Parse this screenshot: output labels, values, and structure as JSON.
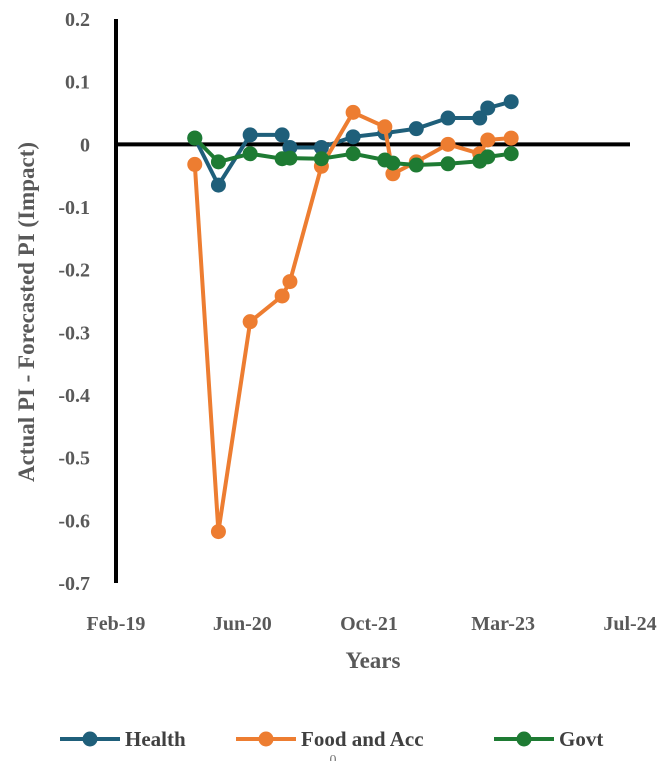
{
  "chart_data": {
    "type": "line",
    "title": "",
    "xlabel": "Years",
    "ylabel": "Actual PI - Forecasted PI (Impact)",
    "x_tick_labels": [
      "Feb-19",
      "Jun-20",
      "Oct-21",
      "Mar-23",
      "Jul-24"
    ],
    "x_tick_dates": [
      "2019-02-01",
      "2020-06-01",
      "2021-10-01",
      "2023-03-01",
      "2024-07-01"
    ],
    "xlim": [
      "2019-02-01",
      "2024-07-01"
    ],
    "ylim": [
      -0.7,
      0.2
    ],
    "y_ticks": [
      -0.7,
      -0.6,
      -0.5,
      -0.4,
      -0.3,
      -0.2,
      -0.1,
      0,
      0.1,
      0.2
    ],
    "y_tick_labels": [
      "-0.7",
      "-0.6",
      "-0.5",
      "-0.4",
      "-0.3",
      "-0.2",
      "-0.1",
      "0",
      "0.1",
      "0.2"
    ],
    "grid": false,
    "legend_position": "bottom",
    "series": [
      {
        "name": "Health",
        "color": "#1f5f7a",
        "points": [
          {
            "x": "2019-12-01",
            "y": 0.01
          },
          {
            "x": "2020-03-01",
            "y": -0.065
          },
          {
            "x": "2020-07-01",
            "y": 0.015
          },
          {
            "x": "2020-11-01",
            "y": 0.015
          },
          {
            "x": "2020-12-01",
            "y": -0.005
          },
          {
            "x": "2021-04-01",
            "y": -0.005
          },
          {
            "x": "2021-08-01",
            "y": 0.012
          },
          {
            "x": "2021-12-01",
            "y": 0.018
          },
          {
            "x": "2022-04-01",
            "y": 0.025
          },
          {
            "x": "2022-08-01",
            "y": 0.042
          },
          {
            "x": "2022-12-01",
            "y": 0.042
          },
          {
            "x": "2023-01-01",
            "y": 0.058
          },
          {
            "x": "2023-04-01",
            "y": 0.068
          }
        ]
      },
      {
        "name": "Food and Acc",
        "color": "#ed7d31",
        "points": [
          {
            "x": "2019-12-01",
            "y": -0.032
          },
          {
            "x": "2020-03-01",
            "y": -0.618
          },
          {
            "x": "2020-07-01",
            "y": -0.283
          },
          {
            "x": "2020-11-01",
            "y": -0.242
          },
          {
            "x": "2020-12-01",
            "y": -0.219
          },
          {
            "x": "2021-04-01",
            "y": -0.035
          },
          {
            "x": "2021-08-01",
            "y": 0.051
          },
          {
            "x": "2021-12-01",
            "y": 0.028
          },
          {
            "x": "2022-01-01",
            "y": -0.047
          },
          {
            "x": "2022-04-01",
            "y": -0.028
          },
          {
            "x": "2022-08-01",
            "y": 0.0
          },
          {
            "x": "2022-12-01",
            "y": -0.015
          },
          {
            "x": "2023-01-01",
            "y": 0.007
          },
          {
            "x": "2023-04-01",
            "y": 0.01
          }
        ]
      },
      {
        "name": "Govt",
        "color": "#1e7b33",
        "points": [
          {
            "x": "2019-12-01",
            "y": 0.01
          },
          {
            "x": "2020-03-01",
            "y": -0.028
          },
          {
            "x": "2020-07-01",
            "y": -0.015
          },
          {
            "x": "2020-11-01",
            "y": -0.023
          },
          {
            "x": "2020-12-01",
            "y": -0.022
          },
          {
            "x": "2021-04-01",
            "y": -0.023
          },
          {
            "x": "2021-08-01",
            "y": -0.015
          },
          {
            "x": "2021-12-01",
            "y": -0.025
          },
          {
            "x": "2022-01-01",
            "y": -0.03
          },
          {
            "x": "2022-04-01",
            "y": -0.033
          },
          {
            "x": "2022-08-01",
            "y": -0.031
          },
          {
            "x": "2022-12-01",
            "y": -0.027
          },
          {
            "x": "2023-01-01",
            "y": -0.02
          },
          {
            "x": "2023-04-01",
            "y": -0.015
          }
        ]
      }
    ],
    "stray_mark": "0"
  }
}
